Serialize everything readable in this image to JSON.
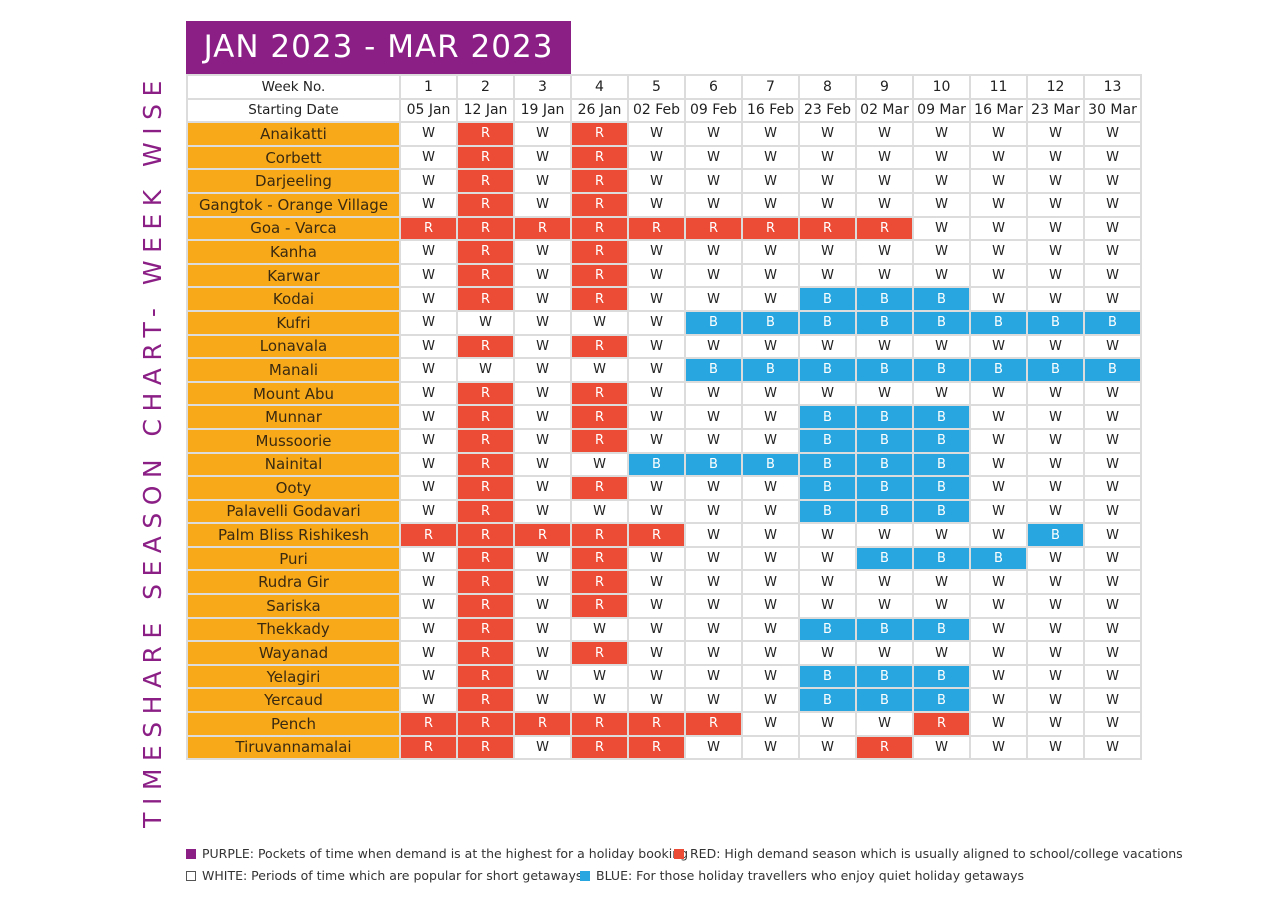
{
  "side_title": "TIMESHARE SEASON CHART- WEEK WISE",
  "header_title": "JAN 2023 - MAR 2023",
  "colors": {
    "purple": "#8b1f86",
    "red": "#ec4b35",
    "blue": "#27a6e0",
    "orange": "#f8a91a",
    "white": "#ffffff"
  },
  "chart_data": {
    "type": "table",
    "title": "JAN 2023 - MAR 2023",
    "row_label_week": "Week No.",
    "row_label_date": "Starting Date",
    "weeks": [
      "1",
      "2",
      "3",
      "4",
      "5",
      "6",
      "7",
      "8",
      "9",
      "10",
      "11",
      "12",
      "13"
    ],
    "dates": [
      "05 Jan",
      "12 Jan",
      "19 Jan",
      "26 Jan",
      "02 Feb",
      "09 Feb",
      "16 Feb",
      "23 Feb",
      "02 Mar",
      "09 Mar",
      "16 Mar",
      "23 Mar",
      "30 Mar"
    ],
    "rows": [
      {
        "name": "Anaikatti",
        "values": [
          "W",
          "R",
          "W",
          "R",
          "W",
          "W",
          "W",
          "W",
          "W",
          "W",
          "W",
          "W",
          "W"
        ]
      },
      {
        "name": "Corbett",
        "values": [
          "W",
          "R",
          "W",
          "R",
          "W",
          "W",
          "W",
          "W",
          "W",
          "W",
          "W",
          "W",
          "W"
        ]
      },
      {
        "name": "Darjeeling",
        "values": [
          "W",
          "R",
          "W",
          "R",
          "W",
          "W",
          "W",
          "W",
          "W",
          "W",
          "W",
          "W",
          "W"
        ]
      },
      {
        "name": "Gangtok - Orange Village",
        "values": [
          "W",
          "R",
          "W",
          "R",
          "W",
          "W",
          "W",
          "W",
          "W",
          "W",
          "W",
          "W",
          "W"
        ]
      },
      {
        "name": "Goa - Varca",
        "values": [
          "R",
          "R",
          "R",
          "R",
          "R",
          "R",
          "R",
          "R",
          "R",
          "W",
          "W",
          "W",
          "W"
        ]
      },
      {
        "name": "Kanha",
        "values": [
          "W",
          "R",
          "W",
          "R",
          "W",
          "W",
          "W",
          "W",
          "W",
          "W",
          "W",
          "W",
          "W"
        ]
      },
      {
        "name": "Karwar",
        "values": [
          "W",
          "R",
          "W",
          "R",
          "W",
          "W",
          "W",
          "W",
          "W",
          "W",
          "W",
          "W",
          "W"
        ]
      },
      {
        "name": "Kodai",
        "values": [
          "W",
          "R",
          "W",
          "R",
          "W",
          "W",
          "W",
          "B",
          "B",
          "B",
          "W",
          "W",
          "W"
        ]
      },
      {
        "name": "Kufri",
        "values": [
          "W",
          "W",
          "W",
          "W",
          "W",
          "B",
          "B",
          "B",
          "B",
          "B",
          "B",
          "B",
          "B"
        ]
      },
      {
        "name": "Lonavala",
        "values": [
          "W",
          "R",
          "W",
          "R",
          "W",
          "W",
          "W",
          "W",
          "W",
          "W",
          "W",
          "W",
          "W"
        ]
      },
      {
        "name": "Manali",
        "values": [
          "W",
          "W",
          "W",
          "W",
          "W",
          "B",
          "B",
          "B",
          "B",
          "B",
          "B",
          "B",
          "B"
        ]
      },
      {
        "name": "Mount Abu",
        "values": [
          "W",
          "R",
          "W",
          "R",
          "W",
          "W",
          "W",
          "W",
          "W",
          "W",
          "W",
          "W",
          "W"
        ]
      },
      {
        "name": "Munnar",
        "values": [
          "W",
          "R",
          "W",
          "R",
          "W",
          "W",
          "W",
          "B",
          "B",
          "B",
          "W",
          "W",
          "W"
        ]
      },
      {
        "name": "Mussoorie",
        "values": [
          "W",
          "R",
          "W",
          "R",
          "W",
          "W",
          "W",
          "B",
          "B",
          "B",
          "W",
          "W",
          "W"
        ]
      },
      {
        "name": "Nainital",
        "values": [
          "W",
          "R",
          "W",
          "W",
          "B",
          "B",
          "B",
          "B",
          "B",
          "B",
          "W",
          "W",
          "W"
        ]
      },
      {
        "name": "Ooty",
        "values": [
          "W",
          "R",
          "W",
          "R",
          "W",
          "W",
          "W",
          "B",
          "B",
          "B",
          "W",
          "W",
          "W"
        ]
      },
      {
        "name": "Palavelli Godavari",
        "values": [
          "W",
          "R",
          "W",
          "W",
          "W",
          "W",
          "W",
          "B",
          "B",
          "B",
          "W",
          "W",
          "W"
        ]
      },
      {
        "name": "Palm Bliss Rishikesh",
        "values": [
          "R",
          "R",
          "R",
          "R",
          "R",
          "W",
          "W",
          "W",
          "W",
          "W",
          "W",
          "B",
          "W"
        ]
      },
      {
        "name": "Puri",
        "values": [
          "W",
          "R",
          "W",
          "R",
          "W",
          "W",
          "W",
          "W",
          "B",
          "B",
          "B",
          "W",
          "W"
        ]
      },
      {
        "name": "Rudra Gir",
        "values": [
          "W",
          "R",
          "W",
          "R",
          "W",
          "W",
          "W",
          "W",
          "W",
          "W",
          "W",
          "W",
          "W"
        ]
      },
      {
        "name": "Sariska",
        "values": [
          "W",
          "R",
          "W",
          "R",
          "W",
          "W",
          "W",
          "W",
          "W",
          "W",
          "W",
          "W",
          "W"
        ]
      },
      {
        "name": "Thekkady",
        "values": [
          "W",
          "R",
          "W",
          "W",
          "W",
          "W",
          "W",
          "B",
          "B",
          "B",
          "W",
          "W",
          "W"
        ]
      },
      {
        "name": "Wayanad",
        "values": [
          "W",
          "R",
          "W",
          "R",
          "W",
          "W",
          "W",
          "W",
          "W",
          "W",
          "W",
          "W",
          "W"
        ]
      },
      {
        "name": "Yelagiri",
        "values": [
          "W",
          "R",
          "W",
          "W",
          "W",
          "W",
          "W",
          "B",
          "B",
          "B",
          "W",
          "W",
          "W"
        ]
      },
      {
        "name": "Yercaud",
        "values": [
          "W",
          "R",
          "W",
          "W",
          "W",
          "W",
          "W",
          "B",
          "B",
          "B",
          "W",
          "W",
          "W"
        ]
      },
      {
        "name": "Pench",
        "values": [
          "R",
          "R",
          "R",
          "R",
          "R",
          "R",
          "W",
          "W",
          "W",
          "R",
          "W",
          "W",
          "W"
        ]
      },
      {
        "name": "Tiruvannamalai",
        "values": [
          "R",
          "R",
          "W",
          "R",
          "R",
          "W",
          "W",
          "W",
          "R",
          "W",
          "W",
          "W",
          "W"
        ]
      }
    ]
  },
  "legend": {
    "purple": "PURPLE: Pockets of time when demand is at the highest for a holiday booking",
    "red": "RED: High demand season which is usually aligned to school/college vacations",
    "white": "WHITE: Periods of time which are popular for short getaways",
    "blue": "BLUE: For those holiday travellers who enjoy quiet holiday getaways"
  }
}
